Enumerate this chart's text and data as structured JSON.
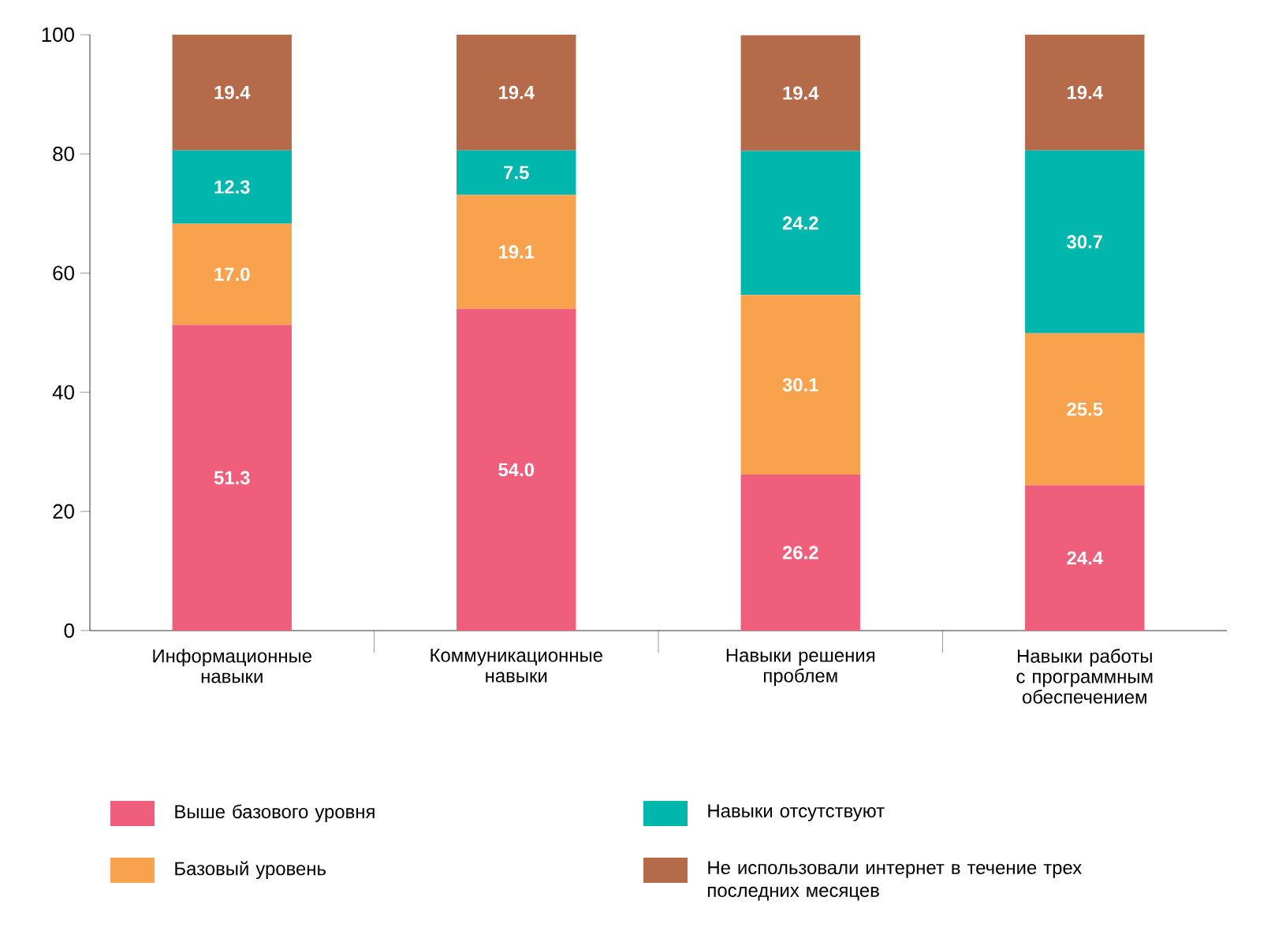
{
  "chart_data": {
    "type": "bar",
    "stacked": true,
    "categories": [
      "Информационные навыки",
      "Коммуникационные навыки",
      "Навыки решения проблем",
      "Навыки работы с программным обеспечением"
    ],
    "series": [
      {
        "name": "Выше базового уровня",
        "color": "#ef5f7c",
        "values": [
          51.3,
          54.0,
          26.2,
          24.4
        ],
        "value_labels": [
          "51.3",
          "54.0",
          "26.2",
          "24.4"
        ]
      },
      {
        "name": "Базовый уровень",
        "color": "#f8a24e",
        "values": [
          17.0,
          19.1,
          30.1,
          25.5
        ],
        "value_labels": [
          "17.0",
          "19.1",
          "30.1",
          "25.5"
        ]
      },
      {
        "name": "Навыки отсутствуют",
        "color": "#00b6ad",
        "values": [
          12.3,
          7.5,
          24.2,
          30.7
        ],
        "value_labels": [
          "12.3",
          "7.5",
          "24.2",
          "30.7"
        ]
      },
      {
        "name": "Не использовали интернет в течение трех последних месяцев",
        "color": "#b56a4a",
        "values": [
          19.4,
          19.4,
          19.4,
          19.4
        ],
        "value_labels": [
          "19.4",
          "19.4",
          "19.4",
          "19.4"
        ]
      }
    ],
    "ylim": [
      0,
      100
    ],
    "yticks": [
      0,
      20,
      40,
      60,
      80,
      100
    ],
    "legend": "bottom"
  }
}
